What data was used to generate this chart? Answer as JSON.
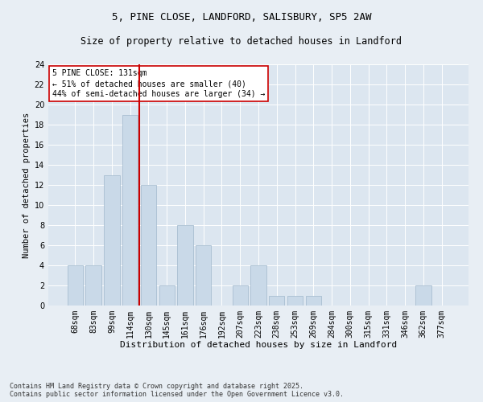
{
  "title_line1": "5, PINE CLOSE, LANDFORD, SALISBURY, SP5 2AW",
  "title_line2": "Size of property relative to detached houses in Landford",
  "xlabel": "Distribution of detached houses by size in Landford",
  "ylabel": "Number of detached properties",
  "categories": [
    "68sqm",
    "83sqm",
    "99sqm",
    "114sqm",
    "130sqm",
    "145sqm",
    "161sqm",
    "176sqm",
    "192sqm",
    "207sqm",
    "223sqm",
    "238sqm",
    "253sqm",
    "269sqm",
    "284sqm",
    "300sqm",
    "315sqm",
    "331sqm",
    "346sqm",
    "362sqm",
    "377sqm"
  ],
  "values": [
    4,
    4,
    13,
    19,
    12,
    2,
    8,
    6,
    0,
    2,
    4,
    1,
    1,
    1,
    0,
    0,
    0,
    0,
    0,
    2,
    0
  ],
  "bar_color": "#c9d9e8",
  "bar_edgecolor": "#a0b8cc",
  "vline_color": "#cc0000",
  "vline_index": 3.5,
  "annotation_text": "5 PINE CLOSE: 131sqm\n← 51% of detached houses are smaller (40)\n44% of semi-detached houses are larger (34) →",
  "annotation_box_edgecolor": "#cc0000",
  "annotation_fontsize": 7,
  "ylim": [
    0,
    24
  ],
  "yticks": [
    0,
    2,
    4,
    6,
    8,
    10,
    12,
    14,
    16,
    18,
    20,
    22,
    24
  ],
  "background_color": "#e8eef4",
  "plot_background": "#dce6f0",
  "footer": "Contains HM Land Registry data © Crown copyright and database right 2025.\nContains public sector information licensed under the Open Government Licence v3.0.",
  "title_fontsize": 9,
  "subtitle_fontsize": 8.5,
  "xlabel_fontsize": 8,
  "ylabel_fontsize": 7.5,
  "tick_fontsize": 7
}
